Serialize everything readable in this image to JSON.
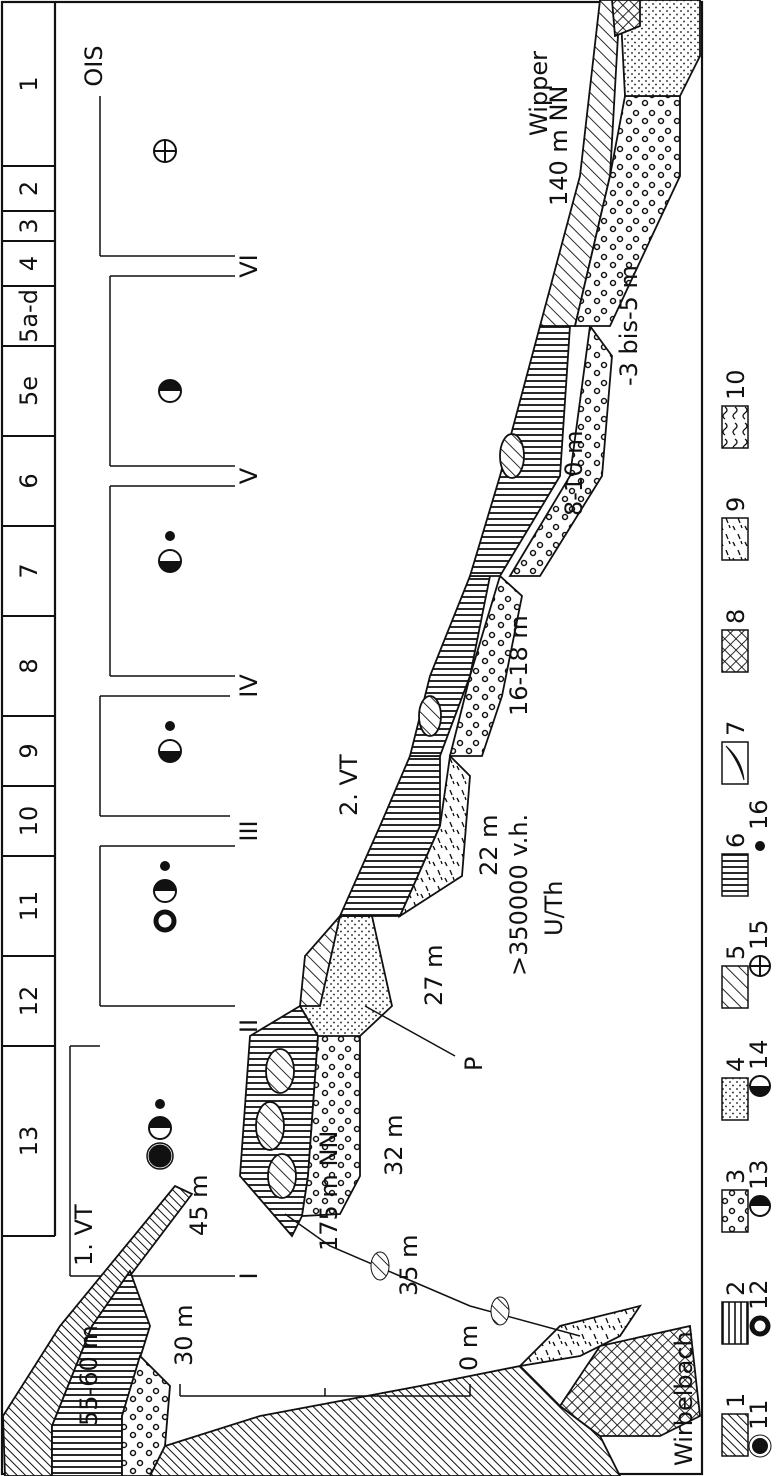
{
  "ois": {
    "title": "OIS",
    "stages": [
      "13",
      "12",
      "11",
      "10",
      "9",
      "8",
      "7",
      "6",
      "5e",
      "5a-d",
      "4",
      "3",
      "2",
      "1"
    ]
  },
  "phases": [
    "I",
    "II",
    "III",
    "IV",
    "V",
    "VI"
  ],
  "labels": {
    "vt1": "1. VT",
    "vt2": "2. VT",
    "h45": "45 m",
    "h55": "55-60 m",
    "nn175": "175 m NN",
    "h35": "35 m",
    "h32": "32 m",
    "h27": "27 m",
    "p": "P",
    "age": ">350000 v.h.",
    "method": "U/Th",
    "h22": "22 m",
    "h16": "16-18 m",
    "h8": "8-10 m",
    "h3": "-3 bis-5 m",
    "nn140": "140 m NN",
    "wipper": "Wipper",
    "wirbelbach": "Wirbelbach",
    "s30": "30 m",
    "s0": "0 m"
  },
  "legend": [
    "1",
    "2",
    "3",
    "4",
    "5",
    "6",
    "7",
    "8",
    "9",
    "10",
    "11",
    "12",
    "13",
    "14",
    "15",
    "16"
  ]
}
